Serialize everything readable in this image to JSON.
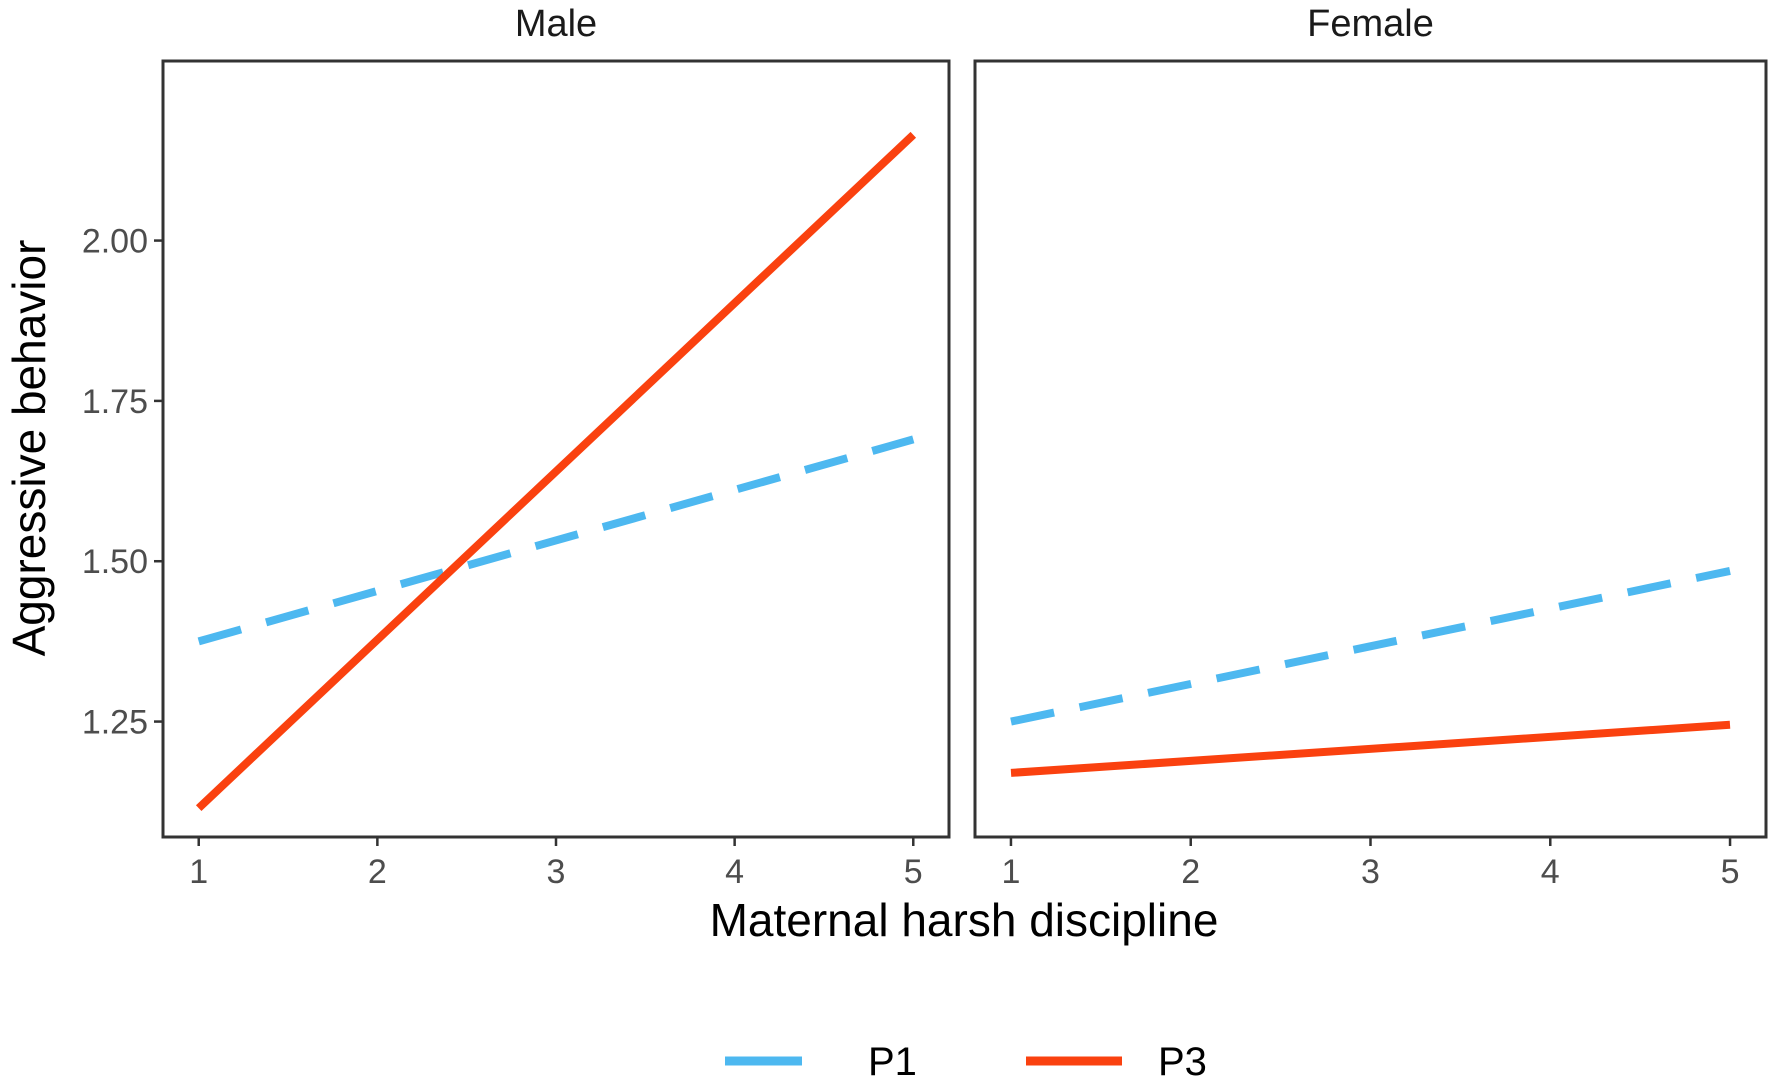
{
  "chart_data": {
    "type": "line",
    "xlabel": "Maternal harsh discipline",
    "ylabel": "Aggressive behavior",
    "xlim": [
      0.8,
      5.2
    ],
    "ylim": [
      1.07,
      2.28
    ],
    "x_ticks": [
      "1",
      "2",
      "3",
      "4",
      "5"
    ],
    "y_ticks": [
      "1.25",
      "1.50",
      "1.75",
      "2.00"
    ],
    "legend_position": "bottom",
    "series_styles": [
      {
        "name": "P1",
        "color": "#4db8f0",
        "dash": "dashed"
      },
      {
        "name": "P3",
        "color": "#fa410f",
        "dash": "solid"
      }
    ],
    "panels": [
      {
        "title": "Male",
        "series": [
          {
            "name": "P1",
            "x": [
              1,
              5
            ],
            "y": [
              1.375,
              1.69
            ]
          },
          {
            "name": "P3",
            "x": [
              1,
              5
            ],
            "y": [
              1.115,
              2.165
            ]
          }
        ]
      },
      {
        "title": "Female",
        "series": [
          {
            "name": "P1",
            "x": [
              1,
              5
            ],
            "y": [
              1.25,
              1.485
            ]
          },
          {
            "name": "P3",
            "x": [
              1,
              5
            ],
            "y": [
              1.17,
              1.245
            ]
          }
        ]
      }
    ]
  }
}
